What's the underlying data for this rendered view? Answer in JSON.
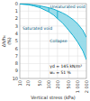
{
  "chart_data": {
    "type": "area",
    "xlabel": "Vertical stress (kPa)",
    "ylabel": "Δh/h₀\n(%)",
    "log": "x",
    "grid": true,
    "xlim": [
      10,
      2000
    ],
    "ylim": [
      10,
      0
    ],
    "xticks": [
      10,
      20,
      50,
      100,
      200,
      500,
      {
        "value": 1000,
        "label": "1 000"
      },
      {
        "value": 2000,
        "label": "2 000"
      }
    ],
    "yticks": [
      0,
      1,
      2,
      3,
      4,
      5,
      6,
      7,
      8,
      9,
      10
    ],
    "color": "#90d8e8",
    "x": [
      10,
      20,
      30,
      50,
      100,
      150,
      200,
      300,
      400,
      500,
      700,
      1000,
      1500,
      2000
    ],
    "series": [
      {
        "color": "#00a8cc",
        "values": [
          0.05,
          0.1,
          0.18,
          0.3,
          0.55,
          0.75,
          0.95,
          1.25,
          1.5,
          1.75,
          2.15,
          2.7,
          3.55,
          4.5
        ]
      },
      {
        "color": "#00a8cc",
        "values": [
          0.05,
          0.15,
          0.3,
          0.55,
          1.1,
          1.55,
          2.0,
          2.6,
          3.15,
          3.6,
          4.3,
          5.15,
          6.3,
          7.5
        ]
      }
    ],
    "collapse_lines": [
      {
        "x": 50,
        "y": [
          0.3,
          0.55
        ]
      },
      {
        "x": 100,
        "y": [
          0.55,
          1.1
        ]
      },
      {
        "x": 200,
        "y": [
          0.95,
          2.0
        ]
      }
    ],
    "annotations": [
      "w₀ = 51 %",
      "γd = 145 kN/m³",
      "Unsaturated void",
      "Saturated void",
      "Collapse"
    ]
  }
}
